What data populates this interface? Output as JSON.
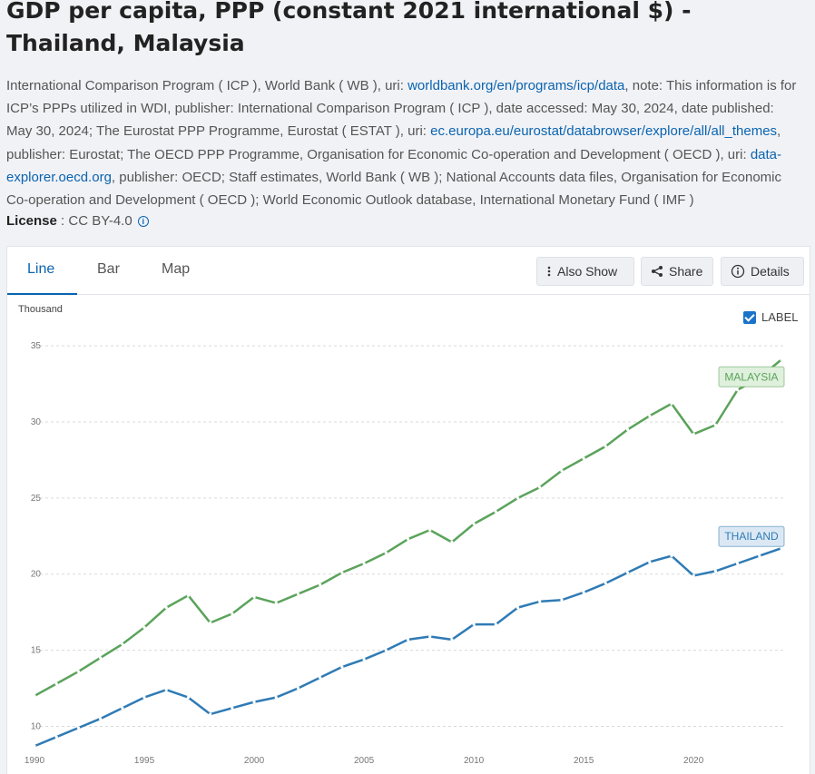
{
  "page": {
    "title": "GDP per capita, PPP (constant 2021 international $) - Thailand, Malaysia",
    "source": {
      "t1": "International Comparison Program ( ICP ), World Bank ( WB ), uri: ",
      "l1": "worldbank.org/en/programs/icp/data",
      "t2": ", note: This information is for ICP’s PPPs utilized in WDI, publisher: International Comparison Program ( ICP ), date accessed: May 30, 2024, date published: May 30, 2024; The Eurostat PPP Programme, Eurostat ( ESTAT ), uri: ",
      "l2": "ec.europa.eu/eurostat/databrowser/explore/all/all_themes",
      "t3": ", publisher: Eurostat; The OECD PPP Programme, Organisation for Economic Co-operation and Development ( OECD ), uri: ",
      "l3": "data-explorer.oecd.org",
      "t4": ", publisher: OECD; Staff estimates, World Bank ( WB ); National Accounts data files, Organisation for Economic Co-operation and Development ( OECD ); World Economic Outlook database, International Monetary Fund ( IMF )"
    },
    "license_label": "License",
    "license_value": " : CC BY-4.0",
    "tabs": [
      "Line",
      "Bar",
      "Map"
    ],
    "buttons": {
      "also_show": "Also Show",
      "share": "Share",
      "details": "Details"
    },
    "label_toggle": "LABEL"
  },
  "colors": {
    "malaysia": "#5ba35b",
    "thailand": "#2f7bb5",
    "accent": "#0a64b0"
  },
  "icons": [
    "info-icon",
    "vertical-dots-icon",
    "share-icon",
    "info-circle-icon",
    "checkbox-icon"
  ],
  "chart_data": {
    "type": "line",
    "ylabel": "Thousand",
    "ylim": [
      8,
      36.5
    ],
    "xlim": [
      1990,
      2024
    ],
    "yticks": [
      10,
      15,
      20,
      25,
      30,
      35
    ],
    "xticks": [
      1990,
      1995,
      2000,
      2005,
      2010,
      2015,
      2020
    ],
    "grid": true,
    "x": [
      1990,
      1991,
      1992,
      1993,
      1994,
      1995,
      1996,
      1997,
      1998,
      1999,
      2000,
      2001,
      2002,
      2003,
      2004,
      2005,
      2006,
      2007,
      2008,
      2009,
      2010,
      2011,
      2012,
      2013,
      2014,
      2015,
      2016,
      2017,
      2018,
      2019,
      2020,
      2021,
      2022,
      2023,
      2024
    ],
    "series": [
      {
        "name": "MALAYSIA",
        "values": [
          12.0,
          12.8,
          13.6,
          14.5,
          15.4,
          16.5,
          17.8,
          18.6,
          16.8,
          17.4,
          18.5,
          18.1,
          18.7,
          19.3,
          20.1,
          20.7,
          21.4,
          22.3,
          22.9,
          22.1,
          23.3,
          24.1,
          25.0,
          25.7,
          26.8,
          27.6,
          28.4,
          29.5,
          30.4,
          31.2,
          29.2,
          29.8,
          32.1,
          32.9,
          34.1
        ]
      },
      {
        "name": "THAILAND",
        "values": [
          8.7,
          9.3,
          9.9,
          10.5,
          11.2,
          11.9,
          12.4,
          11.9,
          10.8,
          11.2,
          11.6,
          11.9,
          12.5,
          13.2,
          13.9,
          14.4,
          15.0,
          15.7,
          15.9,
          15.7,
          16.7,
          16.7,
          17.8,
          18.2,
          18.3,
          18.8,
          19.4,
          20.1,
          20.8,
          21.2,
          19.9,
          20.2,
          20.7,
          21.2,
          21.7
        ]
      }
    ]
  }
}
